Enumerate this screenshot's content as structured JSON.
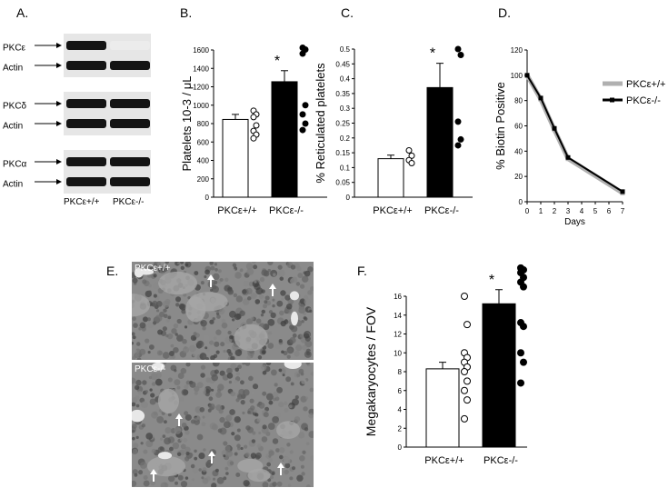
{
  "panels": {
    "A": {
      "letter": "A.",
      "rows": [
        "PKCε",
        "Actin",
        "PKCδ",
        "Actin",
        "PKCα",
        "Actin"
      ],
      "groups": [
        "PKCε+/+",
        "PKCε-/-"
      ],
      "band_intensity": [
        [
          1,
          0.08
        ],
        [
          1,
          1
        ],
        [
          1,
          1
        ],
        [
          1,
          1
        ],
        [
          1,
          1
        ],
        [
          1,
          1
        ]
      ]
    },
    "B": {
      "letter": "B."
    },
    "C": {
      "letter": "C."
    },
    "D": {
      "letter": "D."
    },
    "E": {
      "letter": "E.",
      "images": [
        "PKCε+/+",
        "PKCε-/-"
      ]
    },
    "F": {
      "letter": "F."
    }
  },
  "chart_data": [
    {
      "panel": "B",
      "type": "bar",
      "categories": [
        "PKCε+/+",
        "PKCε-/-"
      ],
      "values": [
        845,
        1255
      ],
      "errors": [
        55,
        120
      ],
      "points": [
        [
          940,
          900,
          870,
          780,
          720,
          680,
          640
        ],
        [
          1625,
          1605,
          1560,
          1000,
          900,
          800,
          730
        ]
      ],
      "fills": [
        "#ffffff",
        "#000000"
      ],
      "ylabel": "Platelets 10-3 / μL",
      "ylim": [
        0,
        1600
      ],
      "yticks": [
        0,
        200,
        400,
        600,
        800,
        1000,
        1200,
        1400,
        1600
      ],
      "significance": [
        "",
        "*"
      ]
    },
    {
      "panel": "C",
      "type": "bar",
      "categories": [
        "PKCε+/+",
        "PKCε-/-"
      ],
      "values": [
        0.13,
        0.37
      ],
      "errors": [
        0.012,
        0.082
      ],
      "points": [
        [
          0.158,
          0.14,
          0.125,
          0.115
        ],
        [
          0.5,
          0.48,
          0.255,
          0.195,
          0.175
        ]
      ],
      "fills": [
        "#ffffff",
        "#000000"
      ],
      "ylabel": "% Reticulated platelets",
      "ylim": [
        0,
        0.5
      ],
      "yticks": [
        0,
        0.05,
        0.1,
        0.15,
        0.2,
        0.25,
        0.3,
        0.35,
        0.4,
        0.45,
        0.5
      ],
      "significance": [
        "",
        "*"
      ]
    },
    {
      "panel": "D",
      "type": "line",
      "xlabel": "Days",
      "ylabel": "% Biotin Positive",
      "xlim": [
        0,
        7
      ],
      "ylim": [
        0,
        120
      ],
      "xticks": [
        0,
        1,
        2,
        3,
        4,
        5,
        6,
        7
      ],
      "yticks": [
        0,
        20,
        40,
        60,
        80,
        100,
        120
      ],
      "x": [
        0,
        1,
        2,
        3,
        7
      ],
      "series": [
        {
          "name": "PKCε+/+",
          "color": "#b0b0b0",
          "values": [
            100,
            81,
            57,
            34,
            7
          ]
        },
        {
          "name": "PKCε-/-",
          "color": "#000000",
          "values": [
            100,
            82,
            58,
            35,
            8
          ]
        }
      ],
      "legend": "right"
    },
    {
      "panel": "F",
      "type": "bar",
      "categories": [
        "PKCε+/+",
        "PKCε-/-"
      ],
      "values": [
        8.3,
        15.2
      ],
      "errors": [
        0.7,
        1.5
      ],
      "points": [
        [
          16,
          13,
          10,
          9.5,
          9,
          8.5,
          8,
          7,
          6,
          5,
          3
        ],
        [
          19,
          18.8,
          18.5,
          18,
          17.5,
          17,
          13.2,
          12.8,
          10,
          9,
          6.8
        ]
      ],
      "fills": [
        "#ffffff",
        "#000000"
      ],
      "ylabel": "Megakaryocytes / FOV",
      "ylim": [
        0,
        16
      ],
      "yticks": [
        0,
        2,
        4,
        6,
        8,
        10,
        12,
        14,
        16
      ],
      "significance": [
        "",
        "*"
      ]
    }
  ]
}
